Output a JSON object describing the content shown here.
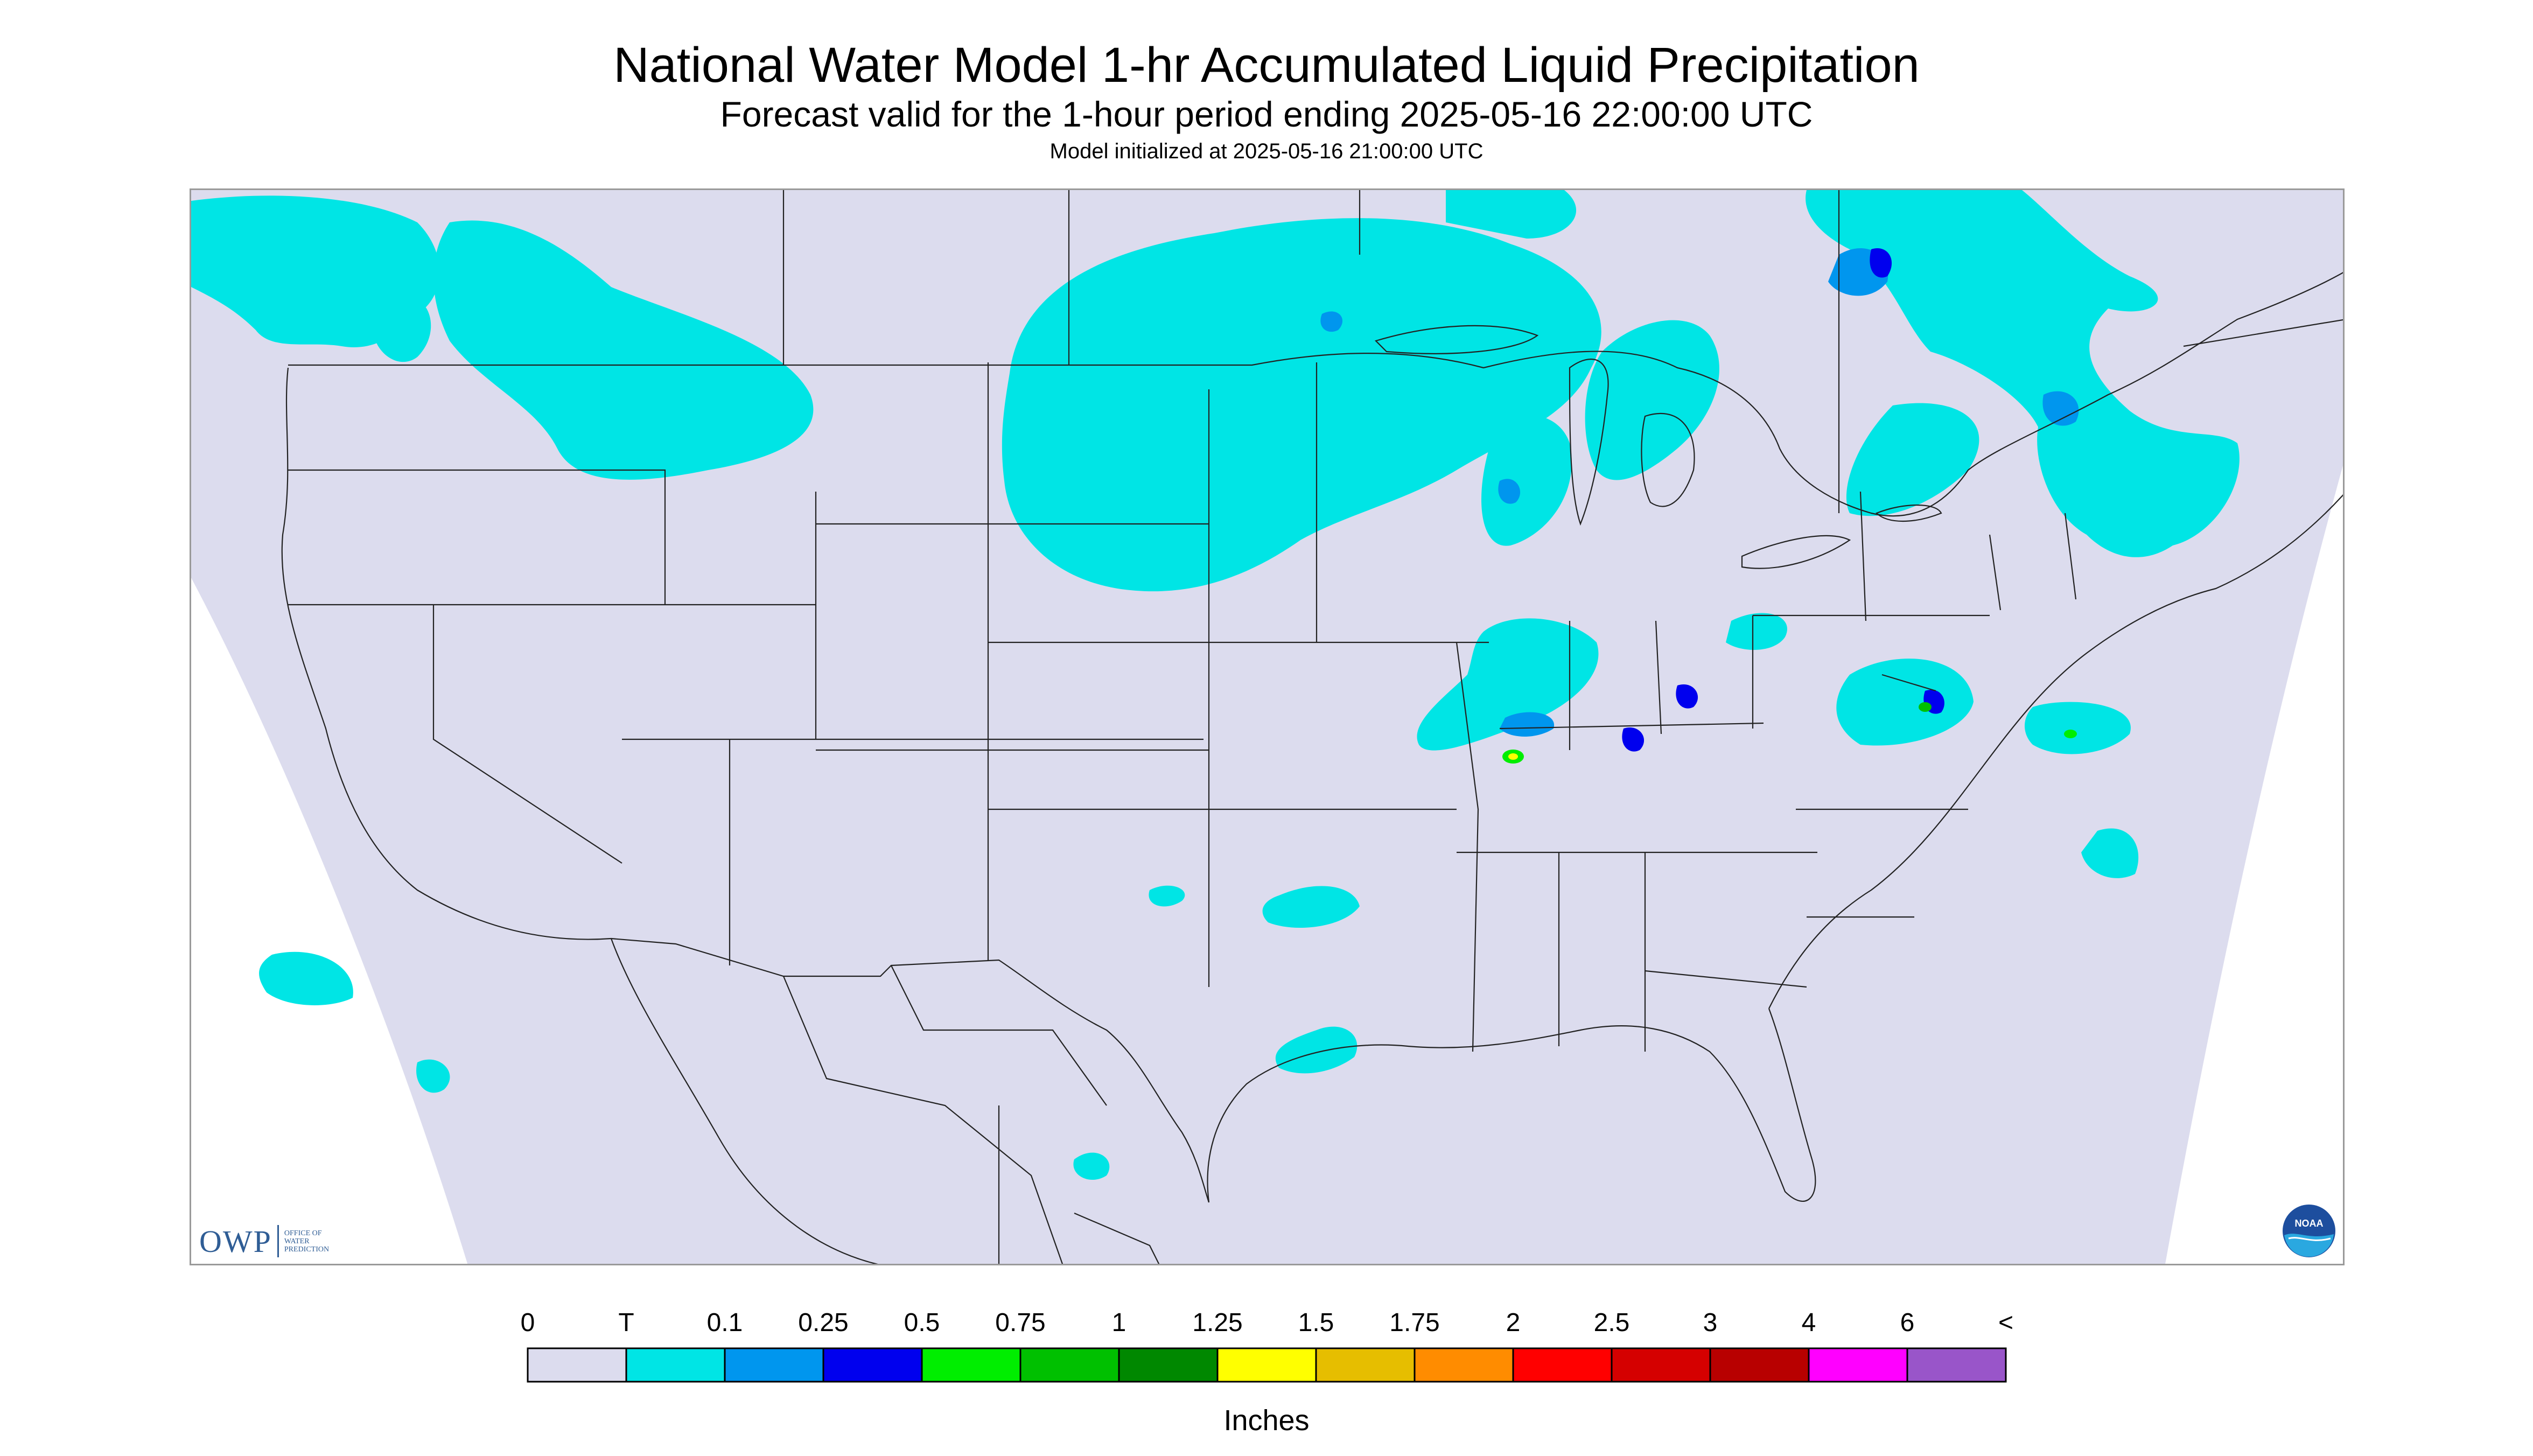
{
  "header": {
    "title": "National Water Model 1-hr Accumulated Liquid Precipitation",
    "subtitle": "Forecast valid for the 1-hour period ending 2025-05-16 22:00:00 UTC",
    "init": "Model initialized at 2025-05-16 21:00:00 UTC"
  },
  "logos": {
    "owp_mark": "OWP",
    "owp_text": "OFFICE OF WATER PREDICTION",
    "noaa_text": "NOAA"
  },
  "colors": {
    "background_domain": "#dcdcee",
    "outside_domain": "#ffffff",
    "boundary_lines": "#222222"
  },
  "legend": {
    "units": "Inches",
    "labels": [
      "0",
      "T",
      "0.1",
      "0.25",
      "0.5",
      "0.75",
      "1",
      "1.25",
      "1.5",
      "1.75",
      "2",
      "2.5",
      "3",
      "4",
      "6",
      "<"
    ],
    "colors": [
      "#dcdcee",
      "#00e5e5",
      "#0096ee",
      "#0000ee",
      "#00ee00",
      "#00c000",
      "#008800",
      "#ffff00",
      "#e6be00",
      "#ff8c00",
      "#ff0000",
      "#d50000",
      "#b80000",
      "#ff00ff",
      "#9955c9"
    ]
  }
}
